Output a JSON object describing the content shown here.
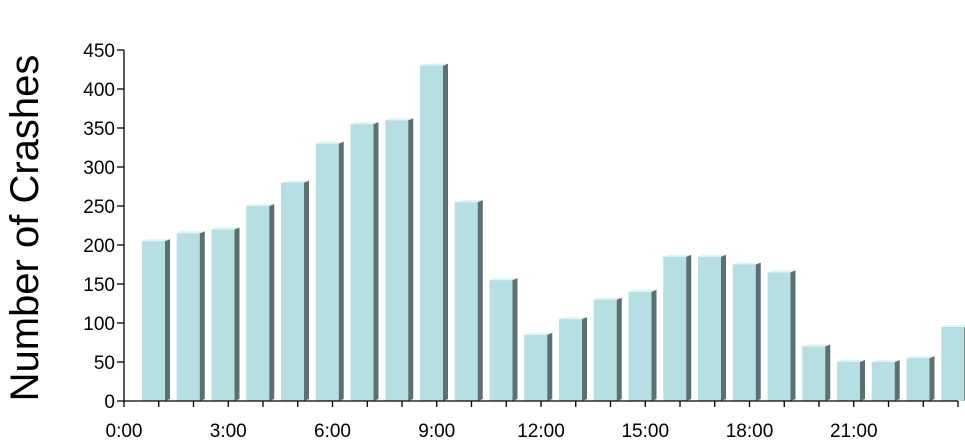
{
  "chart_data": {
    "type": "bar",
    "title": "",
    "xlabel": "",
    "ylabel": "Number of Crashes",
    "ylim": [
      0,
      450
    ],
    "yticks": [
      0,
      50,
      100,
      150,
      200,
      250,
      300,
      350,
      400,
      450
    ],
    "xtick_labels": [
      "0:00",
      "3:00",
      "6:00",
      "9:00",
      "12:00",
      "15:00",
      "18:00",
      "21:00"
    ],
    "categories": [
      "0",
      "1",
      "2",
      "3",
      "4",
      "5",
      "6",
      "7",
      "8",
      "9",
      "10",
      "11",
      "12",
      "13",
      "14",
      "15",
      "16",
      "17",
      "18",
      "19",
      "20",
      "21",
      "22",
      "23"
    ],
    "values": [
      205,
      215,
      220,
      250,
      280,
      330,
      355,
      360,
      430,
      255,
      155,
      85,
      105,
      130,
      140,
      185,
      185,
      175,
      165,
      70,
      50,
      50,
      55,
      95
    ],
    "grid": false,
    "colors": {
      "bar_face": "#b6dfe3",
      "bar_side": "#5e6f71",
      "bar_top": "#dff2f4",
      "axis": "#000000"
    }
  }
}
